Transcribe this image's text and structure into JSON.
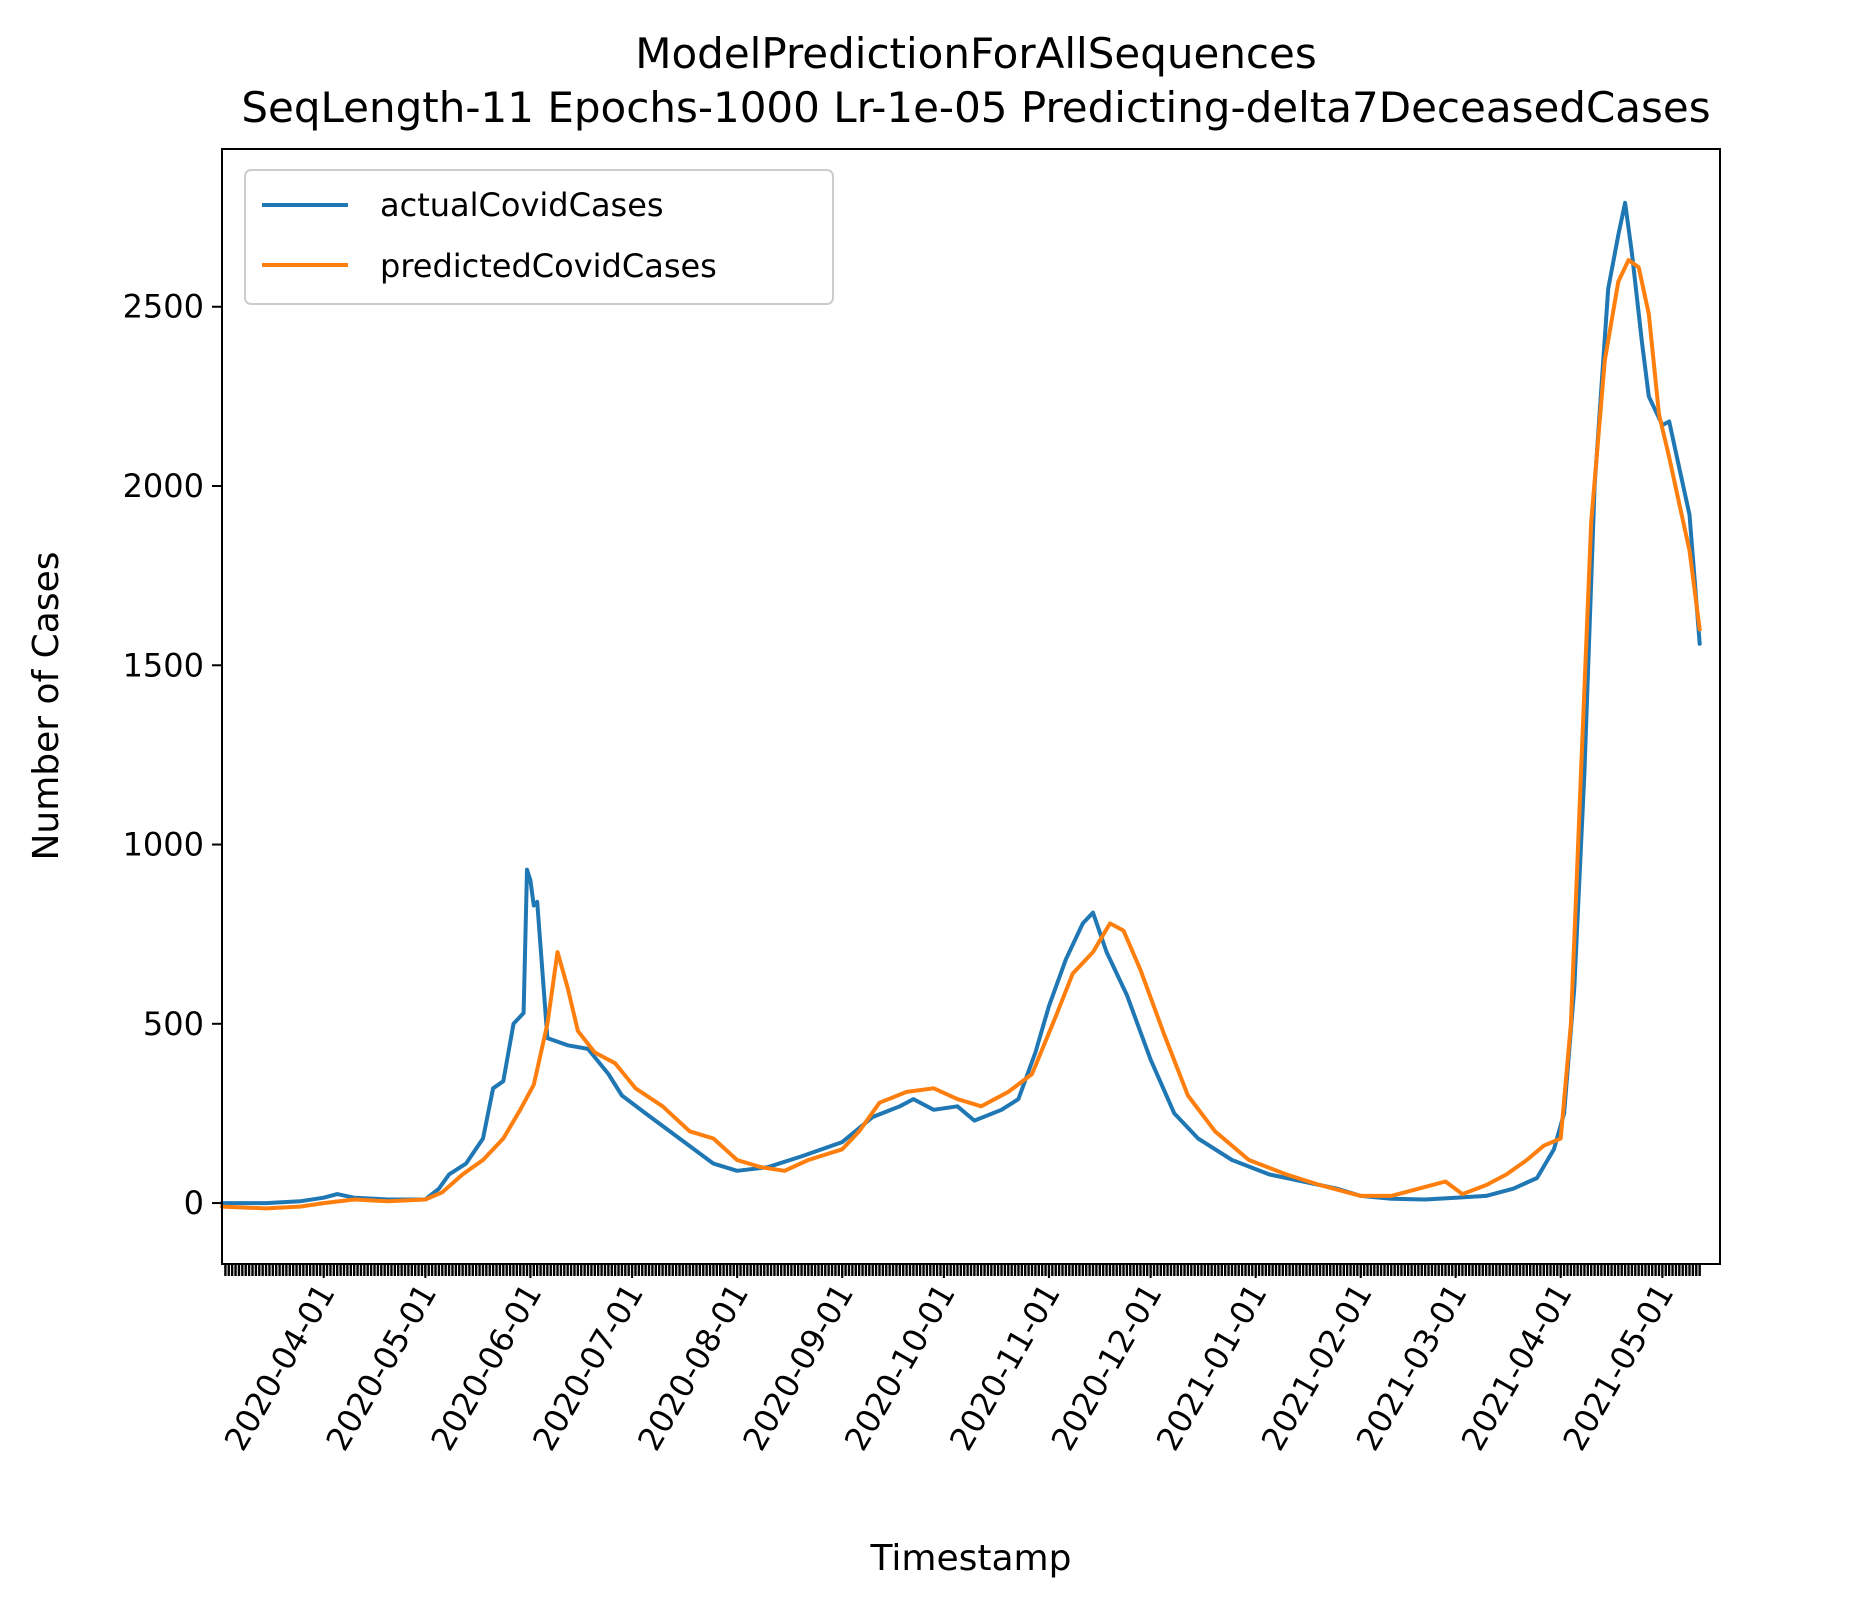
{
  "chart_data": {
    "type": "line",
    "title": "ModelPredictionForAllSequences",
    "subtitle": "SeqLength-11 Epochs-1000 Lr-1e-05 Predicting-delta7DeceasedCases",
    "xlabel": "Timestamp",
    "ylabel": "Number of Cases",
    "x_range": [
      "2020-03-02",
      "2021-05-18"
    ],
    "ylim": [
      -170,
      2940
    ],
    "yticks": [
      0,
      500,
      1000,
      1500,
      2000,
      2500
    ],
    "xticks": [
      "2020-04-01",
      "2020-05-01",
      "2020-06-01",
      "2020-07-01",
      "2020-08-01",
      "2020-09-01",
      "2020-10-01",
      "2020-11-01",
      "2020-12-01",
      "2021-01-01",
      "2021-02-01",
      "2021-03-01",
      "2021-04-01",
      "2021-05-01"
    ],
    "grid": false,
    "legend_position": "top-left",
    "series": [
      {
        "name": "actualCovidCases",
        "color": "#1f77b4",
        "points": [
          [
            "2020-03-02",
            0
          ],
          [
            "2020-03-15",
            0
          ],
          [
            "2020-03-25",
            5
          ],
          [
            "2020-04-01",
            15
          ],
          [
            "2020-04-05",
            25
          ],
          [
            "2020-04-10",
            15
          ],
          [
            "2020-04-20",
            10
          ],
          [
            "2020-05-01",
            10
          ],
          [
            "2020-05-05",
            40
          ],
          [
            "2020-05-08",
            80
          ],
          [
            "2020-05-13",
            110
          ],
          [
            "2020-05-18",
            180
          ],
          [
            "2020-05-21",
            320
          ],
          [
            "2020-05-24",
            340
          ],
          [
            "2020-05-27",
            500
          ],
          [
            "2020-05-30",
            530
          ],
          [
            "2020-05-31",
            930
          ],
          [
            "2020-06-01",
            900
          ],
          [
            "2020-06-02",
            830
          ],
          [
            "2020-06-03",
            840
          ],
          [
            "2020-06-06",
            460
          ],
          [
            "2020-06-12",
            440
          ],
          [
            "2020-06-18",
            430
          ],
          [
            "2020-06-24",
            360
          ],
          [
            "2020-06-28",
            300
          ],
          [
            "2020-07-05",
            250
          ],
          [
            "2020-07-15",
            180
          ],
          [
            "2020-07-25",
            110
          ],
          [
            "2020-08-01",
            90
          ],
          [
            "2020-08-10",
            100
          ],
          [
            "2020-08-20",
            130
          ],
          [
            "2020-09-01",
            170
          ],
          [
            "2020-09-10",
            240
          ],
          [
            "2020-09-18",
            270
          ],
          [
            "2020-09-22",
            290
          ],
          [
            "2020-09-28",
            260
          ],
          [
            "2020-10-05",
            270
          ],
          [
            "2020-10-10",
            230
          ],
          [
            "2020-10-18",
            260
          ],
          [
            "2020-10-23",
            290
          ],
          [
            "2020-10-28",
            420
          ],
          [
            "2020-11-01",
            550
          ],
          [
            "2020-11-06",
            680
          ],
          [
            "2020-11-11",
            780
          ],
          [
            "2020-11-14",
            810
          ],
          [
            "2020-11-18",
            700
          ],
          [
            "2020-11-24",
            580
          ],
          [
            "2020-12-01",
            400
          ],
          [
            "2020-12-08",
            250
          ],
          [
            "2020-12-15",
            180
          ],
          [
            "2020-12-25",
            120
          ],
          [
            "2021-01-05",
            80
          ],
          [
            "2021-01-15",
            60
          ],
          [
            "2021-01-25",
            40
          ],
          [
            "2021-02-01",
            20
          ],
          [
            "2021-02-10",
            12
          ],
          [
            "2021-02-20",
            10
          ],
          [
            "2021-03-01",
            15
          ],
          [
            "2021-03-10",
            20
          ],
          [
            "2021-03-18",
            40
          ],
          [
            "2021-03-25",
            70
          ],
          [
            "2021-03-30",
            150
          ],
          [
            "2021-04-02",
            250
          ],
          [
            "2021-04-05",
            600
          ],
          [
            "2021-04-08",
            1200
          ],
          [
            "2021-04-11",
            2000
          ],
          [
            "2021-04-15",
            2550
          ],
          [
            "2021-04-18",
            2700
          ],
          [
            "2021-04-20",
            2790
          ],
          [
            "2021-04-22",
            2650
          ],
          [
            "2021-04-25",
            2400
          ],
          [
            "2021-04-27",
            2250
          ],
          [
            "2021-05-01",
            2170
          ],
          [
            "2021-05-03",
            2180
          ],
          [
            "2021-05-06",
            2050
          ],
          [
            "2021-05-09",
            1920
          ],
          [
            "2021-05-12",
            1560
          ]
        ]
      },
      {
        "name": "predictedCovidCases",
        "color": "#ff7f0e",
        "points": [
          [
            "2020-03-02",
            -10
          ],
          [
            "2020-03-15",
            -15
          ],
          [
            "2020-03-25",
            -10
          ],
          [
            "2020-04-01",
            0
          ],
          [
            "2020-04-10",
            10
          ],
          [
            "2020-04-20",
            5
          ],
          [
            "2020-05-01",
            10
          ],
          [
            "2020-05-06",
            30
          ],
          [
            "2020-05-12",
            80
          ],
          [
            "2020-05-18",
            120
          ],
          [
            "2020-05-24",
            180
          ],
          [
            "2020-05-29",
            260
          ],
          [
            "2020-06-02",
            330
          ],
          [
            "2020-06-06",
            500
          ],
          [
            "2020-06-09",
            700
          ],
          [
            "2020-06-12",
            600
          ],
          [
            "2020-06-15",
            480
          ],
          [
            "2020-06-20",
            420
          ],
          [
            "2020-06-26",
            390
          ],
          [
            "2020-07-02",
            320
          ],
          [
            "2020-07-10",
            270
          ],
          [
            "2020-07-18",
            200
          ],
          [
            "2020-07-25",
            180
          ],
          [
            "2020-08-01",
            120
          ],
          [
            "2020-08-08",
            100
          ],
          [
            "2020-08-15",
            90
          ],
          [
            "2020-08-22",
            120
          ],
          [
            "2020-09-01",
            150
          ],
          [
            "2020-09-06",
            200
          ],
          [
            "2020-09-12",
            280
          ],
          [
            "2020-09-20",
            310
          ],
          [
            "2020-09-28",
            320
          ],
          [
            "2020-10-05",
            290
          ],
          [
            "2020-10-12",
            270
          ],
          [
            "2020-10-20",
            310
          ],
          [
            "2020-10-27",
            360
          ],
          [
            "2020-11-03",
            520
          ],
          [
            "2020-11-08",
            640
          ],
          [
            "2020-11-14",
            700
          ],
          [
            "2020-11-19",
            780
          ],
          [
            "2020-11-23",
            760
          ],
          [
            "2020-11-28",
            650
          ],
          [
            "2020-12-05",
            470
          ],
          [
            "2020-12-12",
            300
          ],
          [
            "2020-12-20",
            200
          ],
          [
            "2020-12-30",
            120
          ],
          [
            "2021-01-10",
            80
          ],
          [
            "2021-01-20",
            50
          ],
          [
            "2021-02-01",
            20
          ],
          [
            "2021-02-10",
            20
          ],
          [
            "2021-02-20",
            45
          ],
          [
            "2021-02-26",
            60
          ],
          [
            "2021-03-03",
            25
          ],
          [
            "2021-03-10",
            50
          ],
          [
            "2021-03-16",
            80
          ],
          [
            "2021-03-22",
            120
          ],
          [
            "2021-03-27",
            160
          ],
          [
            "2021-04-01",
            180
          ],
          [
            "2021-04-04",
            500
          ],
          [
            "2021-04-07",
            1200
          ],
          [
            "2021-04-10",
            1900
          ],
          [
            "2021-04-14",
            2350
          ],
          [
            "2021-04-18",
            2570
          ],
          [
            "2021-04-21",
            2630
          ],
          [
            "2021-04-24",
            2610
          ],
          [
            "2021-04-27",
            2480
          ],
          [
            "2021-04-30",
            2200
          ],
          [
            "2021-05-03",
            2080
          ],
          [
            "2021-05-06",
            1950
          ],
          [
            "2021-05-09",
            1820
          ],
          [
            "2021-05-12",
            1600
          ]
        ]
      }
    ]
  }
}
